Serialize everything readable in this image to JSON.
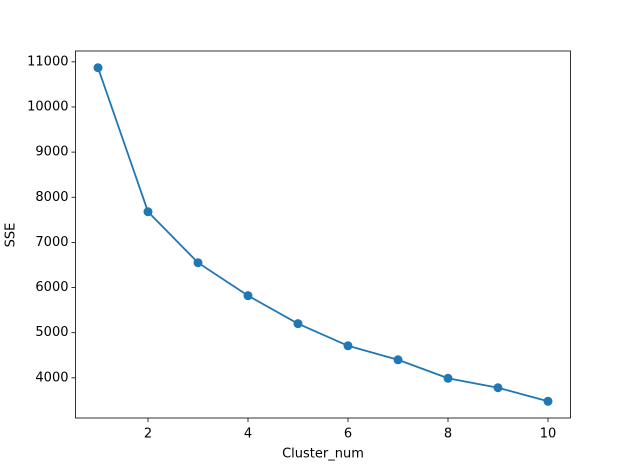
{
  "chart_data": {
    "type": "line",
    "x_label": "Cluster_num",
    "y_label": "SSE",
    "x": [
      1,
      2,
      3,
      4,
      5,
      6,
      7,
      8,
      9,
      10
    ],
    "series": [
      {
        "color": "#1f77b4",
        "values": [
          10870,
          7680,
          6550,
          5820,
          5200,
          4710,
          4400,
          3990,
          3780,
          3480
        ]
      }
    ],
    "xlim": [
      0.55,
      10.45
    ],
    "xticks": [
      2,
      4,
      6,
      8,
      10
    ],
    "ylim": [
      3110,
      11240
    ],
    "yticks": [
      4000,
      5000,
      6000,
      7000,
      8000,
      9000,
      10000,
      11000
    ],
    "markers": true,
    "grid": false
  }
}
